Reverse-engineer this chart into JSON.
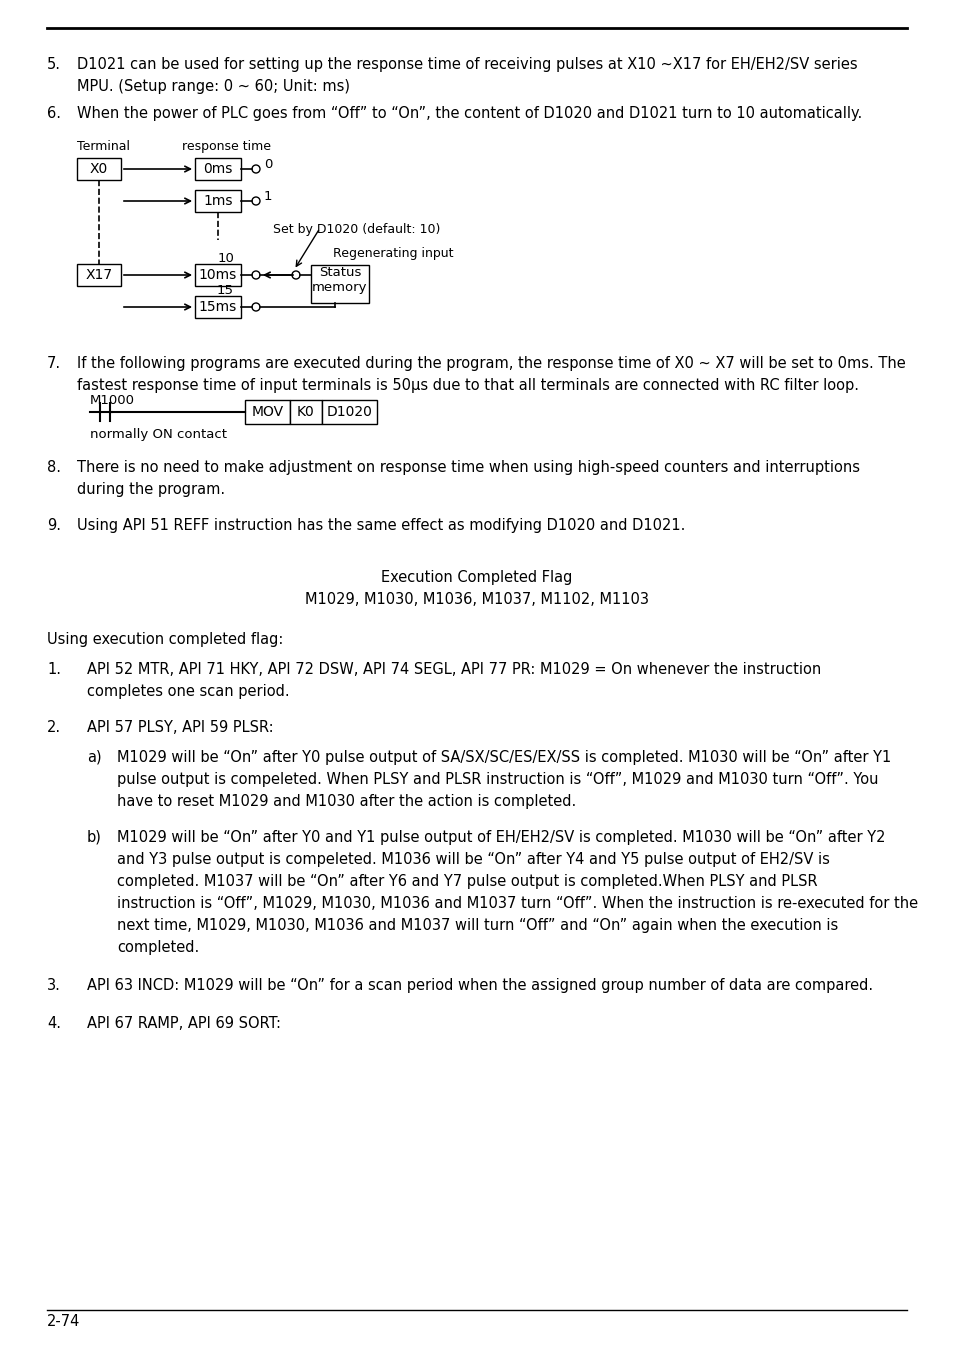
{
  "page_number": "2-74",
  "font": "DejaVu Sans",
  "body_size": 10.5,
  "small_size": 9,
  "diagram_size": 9.5,
  "item5_line1": "D1021 can be used for setting up the response time of receiving pulses at X10 ~X17 for EH/EH2/SV series",
  "item5_line2": "MPU. (Setup range: 0 ~ 60; Unit: ms)",
  "item6_text": "When the power of PLC goes from “Off” to “On”, the content of D1020 and D1021 turn to 10 automatically.",
  "item7_line1": "If the following programs are executed during the program, the response time of X0 ~ X7 will be set to 0ms. The",
  "item7_line2": "fastest response time of input terminals is 50μs due to that all terminals are connected with RC filter loop.",
  "item8_line1": "There is no need to make adjustment on response time when using high-speed counters and interruptions",
  "item8_line2": "during the program.",
  "item9_text": "Using API 51 REFF instruction has the same effect as modifying D1020 and D1021.",
  "exec_flag_title": "Execution Completed Flag",
  "exec_flag_values": "M1029, M1030, M1036, M1037, M1102, M1103",
  "using_exec_text": "Using execution completed flag:",
  "normally_on": "normally ON contact",
  "s1_line1": "API 52 MTR, API 71 HKY, API 72 DSW, API 74 SEGL, API 77 PR: M1029 = On whenever the instruction",
  "s1_line2": "completes one scan period.",
  "s2_text": "API 57 PLSY, API 59 PLSR:",
  "s2a_l1": "M1029 will be “On” after Y0 pulse output of SA/SX/SC/ES/EX/SS is completed. M1030 will be “On” after Y1",
  "s2a_l2": "pulse output is compeleted. When PLSY and PLSR instruction is “Off”, M1029 and M1030 turn “Off”. You",
  "s2a_l3": "have to reset M1029 and M1030 after the action is completed.",
  "s2b_l1": "M1029 will be “On” after Y0 and Y1 pulse output of EH/EH2/SV is completed. M1030 will be “On” after Y2",
  "s2b_l2": "and Y3 pulse output is compeleted. M1036 will be “On” after Y4 and Y5 pulse output of EH2/SV is",
  "s2b_l3": "completed. M1037 will be “On” after Y6 and Y7 pulse output is completed.When PLSY and PLSR",
  "s2b_l4": "instruction is “Off”, M1029, M1030, M1036 and M1037 turn “Off”. When the instruction is re-executed for the",
  "s2b_l5": "next time, M1029, M1030, M1036 and M1037 will turn “Off” and “On” again when the execution is",
  "s2b_l6": "completed.",
  "s3_text": "API 63 INCD: M1029 will be “On” for a scan period when the assigned group number of data are compared.",
  "s4_text": "API 67 RAMP, API 69 SORT:"
}
